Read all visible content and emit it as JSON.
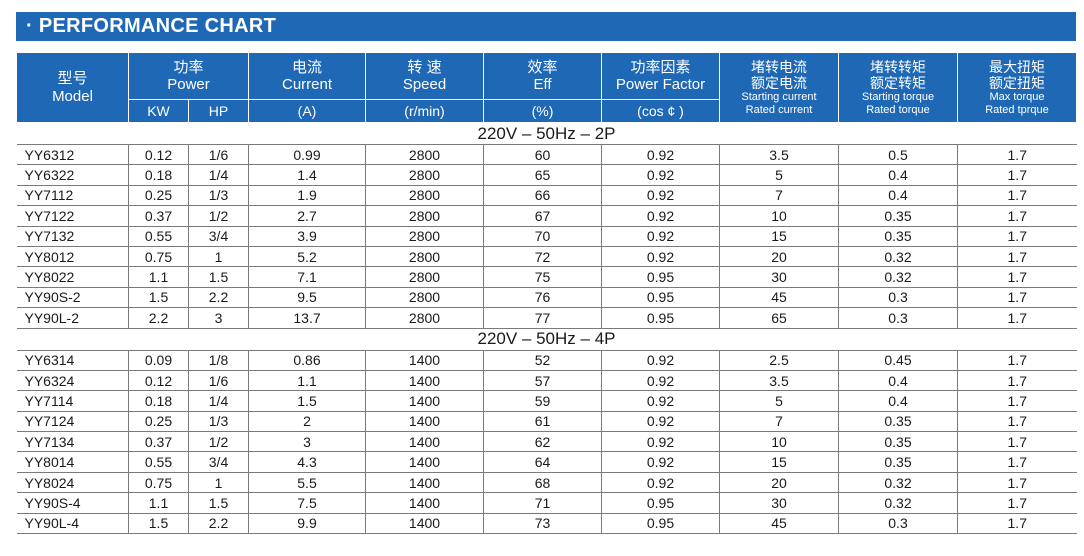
{
  "title": "· PERFORMANCE CHART",
  "headers": {
    "model": {
      "zh": "型号",
      "en": "Model"
    },
    "power": {
      "zh": "功率",
      "en": "Power",
      "kw": "KW",
      "hp": "HP"
    },
    "current": {
      "zh": "电流",
      "en": "Current",
      "unit": "(A)"
    },
    "speed": {
      "zh": "转 速",
      "en": "Speed",
      "unit": "(r/min)"
    },
    "eff": {
      "zh": "效率",
      "en": "Eff",
      "unit": "(%)"
    },
    "power_factor": {
      "zh": "功率因素",
      "en": "Power Factor",
      "unit": "(cos ¢ )"
    },
    "starting_current": {
      "zh1": "堵转电流",
      "zh2": "额定电流",
      "en1": "Starting current",
      "en2": "Rated current"
    },
    "starting_torque": {
      "zh1": "堵转转矩",
      "zh2": "额定转矩",
      "en1": "Starting torque",
      "en2": "Rated torque"
    },
    "max_torque": {
      "zh1": "最大扭矩",
      "zh2": "额定扭矩",
      "en1": "Max torque",
      "en2": "Rated tprque"
    }
  },
  "sections": [
    {
      "label": "220V – 50Hz – 2P",
      "rows": [
        [
          "YY6312",
          "0.12",
          "1/6",
          "0.99",
          "2800",
          "60",
          "0.92",
          "3.5",
          "0.5",
          "1.7"
        ],
        [
          "YY6322",
          "0.18",
          "1/4",
          "1.4",
          "2800",
          "65",
          "0.92",
          "5",
          "0.4",
          "1.7"
        ],
        [
          "YY7112",
          "0.25",
          "1/3",
          "1.9",
          "2800",
          "66",
          "0.92",
          "7",
          "0.4",
          "1.7"
        ],
        [
          "YY7122",
          "0.37",
          "1/2",
          "2.7",
          "2800",
          "67",
          "0.92",
          "10",
          "0.35",
          "1.7"
        ],
        [
          "YY7132",
          "0.55",
          "3/4",
          "3.9",
          "2800",
          "70",
          "0.92",
          "15",
          "0.35",
          "1.7"
        ],
        [
          "YY8012",
          "0.75",
          "1",
          "5.2",
          "2800",
          "72",
          "0.92",
          "20",
          "0.32",
          "1.7"
        ],
        [
          "YY8022",
          "1.1",
          "1.5",
          "7.1",
          "2800",
          "75",
          "0.95",
          "30",
          "0.32",
          "1.7"
        ],
        [
          "YY90S-2",
          "1.5",
          "2.2",
          "9.5",
          "2800",
          "76",
          "0.95",
          "45",
          "0.3",
          "1.7"
        ],
        [
          "YY90L-2",
          "2.2",
          "3",
          "13.7",
          "2800",
          "77",
          "0.95",
          "65",
          "0.3",
          "1.7"
        ]
      ]
    },
    {
      "label": "220V – 50Hz – 4P",
      "rows": [
        [
          "YY6314",
          "0.09",
          "1/8",
          "0.86",
          "1400",
          "52",
          "0.92",
          "2.5",
          "0.45",
          "1.7"
        ],
        [
          "YY6324",
          "0.12",
          "1/6",
          "1.1",
          "1400",
          "57",
          "0.92",
          "3.5",
          "0.4",
          "1.7"
        ],
        [
          "YY7114",
          "0.18",
          "1/4",
          "1.5",
          "1400",
          "59",
          "0.92",
          "5",
          "0.4",
          "1.7"
        ],
        [
          "YY7124",
          "0.25",
          "1/3",
          "2",
          "1400",
          "61",
          "0.92",
          "7",
          "0.35",
          "1.7"
        ],
        [
          "YY7134",
          "0.37",
          "1/2",
          "3",
          "1400",
          "62",
          "0.92",
          "10",
          "0.35",
          "1.7"
        ],
        [
          "YY8014",
          "0.55",
          "3/4",
          "4.3",
          "1400",
          "64",
          "0.92",
          "15",
          "0.35",
          "1.7"
        ],
        [
          "YY8024",
          "0.75",
          "1",
          "5.5",
          "1400",
          "68",
          "0.92",
          "20",
          "0.32",
          "1.7"
        ],
        [
          "YY90S-4",
          "1.1",
          "1.5",
          "7.5",
          "1400",
          "71",
          "0.95",
          "30",
          "0.32",
          "1.7"
        ],
        [
          "YY90L-4",
          "1.5",
          "2.2",
          "9.9",
          "1400",
          "73",
          "0.95",
          "45",
          "0.3",
          "1.7"
        ]
      ]
    }
  ]
}
